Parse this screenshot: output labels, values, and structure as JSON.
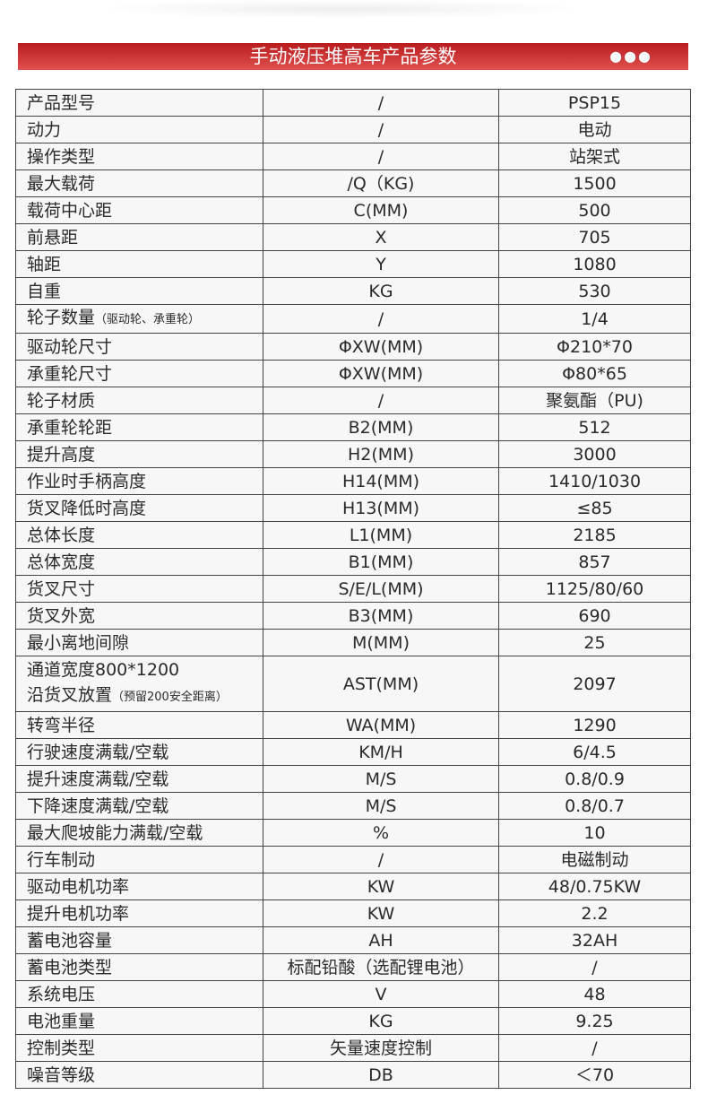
{
  "header": {
    "title": "手动液压堆高车产品参数",
    "dots": "●●●",
    "accent": "#c62828"
  },
  "rows": [
    [
      "产品型号",
      "",
      "/",
      "PSP15"
    ],
    [
      "动力",
      "",
      "/",
      "电动"
    ],
    [
      "操作类型",
      "",
      "/",
      "站架式"
    ],
    [
      "最大载荷",
      "",
      "/Q（KG)",
      "1500"
    ],
    [
      "载荷中心距",
      "",
      "C(MM)",
      "500"
    ],
    [
      "前悬距",
      "",
      "X",
      "705"
    ],
    [
      "轴距",
      "",
      "Y",
      "1080"
    ],
    [
      "自重",
      "",
      "KG",
      "530"
    ],
    [
      "轮子数量",
      "（驱动轮、承重轮）",
      "/",
      "1/4"
    ],
    [
      "驱动轮尺寸",
      "",
      "ΦXW(MM)",
      "Φ210*70"
    ],
    [
      "承重轮尺寸",
      "",
      "ΦXW(MM)",
      "Φ80*65"
    ],
    [
      "轮子材质",
      "",
      "/",
      "聚氨酯（PU)"
    ],
    [
      "承重轮轮距",
      "",
      "B2(MM)",
      "512"
    ],
    [
      "提升高度",
      "",
      "H2(MM)",
      "3000"
    ],
    [
      "作业时手柄高度",
      "",
      "H14(MM)",
      "1410/1030"
    ],
    [
      "货叉降低时高度",
      "",
      "H13(MM)",
      "≤85"
    ],
    [
      "总体长度",
      "",
      "L1(MM)",
      "2185"
    ],
    [
      "总体宽度",
      "",
      "B1(MM)",
      "857"
    ],
    [
      "货叉尺寸",
      "",
      "S/E/L(MM)",
      "1125/80/60"
    ],
    [
      "货叉外宽",
      "",
      "B3(MM)",
      "690"
    ],
    [
      "最小离地间隙",
      "",
      "M(MM)",
      "25"
    ],
    [
      "通道宽度800*1200\n沿货叉放置",
      "（预留200安全距离）",
      "AST(MM)",
      "2097"
    ],
    [
      "转弯半径",
      "",
      "WA(MM)",
      "1290"
    ],
    [
      "行驶速度满载/空载",
      "",
      "KM/H",
      "6/4.5"
    ],
    [
      "提升速度满载/空载",
      "",
      "M/S",
      "0.8/0.9"
    ],
    [
      "下降速度满载/空载",
      "",
      "M/S",
      "0.8/0.7"
    ],
    [
      "最大爬坡能力满载/空载",
      "",
      "%",
      "10"
    ],
    [
      "行车制动",
      "",
      "/",
      "电磁制动"
    ],
    [
      "驱动电机功率",
      "",
      "KW",
      "48/0.75KW"
    ],
    [
      "提升电机功率",
      "",
      "KW",
      "2.2"
    ],
    [
      "蓄电池容量",
      "",
      "AH",
      "32AH"
    ],
    [
      "蓄电池类型",
      "",
      "标配铅酸（选配锂电池）",
      "/"
    ],
    [
      "系统电压",
      "",
      "V",
      "48"
    ],
    [
      "电池重量",
      "",
      "KG",
      "9.25"
    ],
    [
      "控制类型",
      "",
      "矢量速度控制",
      "/"
    ],
    [
      "噪音等级",
      "",
      "DB",
      "＜70"
    ]
  ]
}
